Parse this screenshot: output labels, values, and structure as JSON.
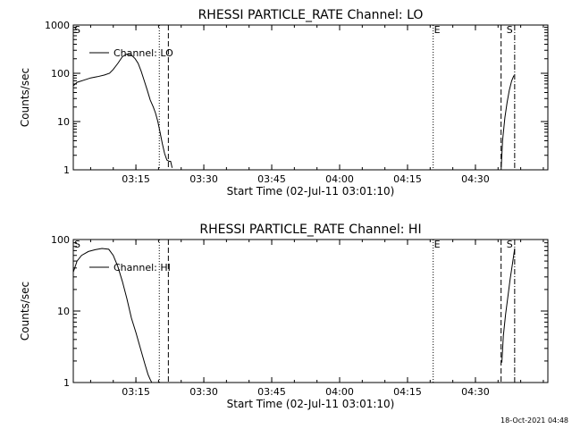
{
  "footer": {
    "timestamp": "18-Oct-2021 04:48"
  },
  "chart_data": [
    {
      "type": "line",
      "title": "RHESSI PARTICLE_RATE Channel: LO",
      "xlabel": "Start Time (02-Jul-11 03:01:10)",
      "ylabel": "Counts/sec",
      "yscale": "log",
      "xlim": [
        "03:01:10",
        "04:46:00"
      ],
      "ylim": [
        1,
        1000
      ],
      "xticks": [
        "03:15",
        "03:30",
        "03:45",
        "04:00",
        "04:15",
        "04:30"
      ],
      "yticks": [
        "1",
        "10",
        "100",
        "1000"
      ],
      "legend": {
        "position": "top-left",
        "label": "Channel: LO"
      },
      "series": [
        {
          "name": "Channel: LO",
          "segments": [
            {
              "x": [
                "03:01:10",
                "03:02:00",
                "03:03:30",
                "03:05:00",
                "03:06:30",
                "03:08:00",
                "03:09:10",
                "03:10:00",
                "03:11:00",
                "03:12:00",
                "03:13:00",
                "03:14:00",
                "03:14:50",
                "03:15:30",
                "03:16:10",
                "03:16:50",
                "03:17:30",
                "03:18:10",
                "03:18:50",
                "03:19:20",
                "03:19:50",
                "03:20:20",
                "03:20:50",
                "03:21:20",
                "03:21:50",
                "03:22:20",
                "03:22:40",
                "03:23:00"
              ],
              "y": [
                55,
                65,
                72,
                80,
                85,
                92,
                100,
                120,
                160,
                220,
                250,
                240,
                200,
                160,
                110,
                70,
                45,
                28,
                20,
                15,
                10,
                6,
                3.5,
                2.2,
                1.6,
                1.5,
                1.5,
                1.1
              ]
            },
            {
              "x": [
                "04:35:40",
                "04:36:00",
                "04:36:30",
                "04:37:00",
                "04:37:30",
                "04:38:00",
                "04:38:30"
              ],
              "y": [
                1.0,
                4.0,
                12,
                25,
                45,
                70,
                90
              ]
            }
          ]
        }
      ],
      "annotations": [
        {
          "label": "S",
          "time": "03:01:10",
          "style": "none"
        },
        {
          "label": "",
          "time": "03:20:10",
          "style": "dotted"
        },
        {
          "label": "",
          "time": "03:22:10",
          "style": "dashed"
        },
        {
          "label": "E",
          "time": "04:20:40",
          "style": "dotted"
        },
        {
          "label": "",
          "time": "04:35:40",
          "style": "dashed"
        },
        {
          "label": "S",
          "time": "04:36:40",
          "style": "none"
        },
        {
          "label": "",
          "time": "04:38:40",
          "style": "dashdot"
        }
      ]
    },
    {
      "type": "line",
      "title": "RHESSI PARTICLE_RATE Channel: HI",
      "xlabel": "Start Time (02-Jul-11 03:01:10)",
      "ylabel": "Counts/sec",
      "yscale": "log",
      "xlim": [
        "03:01:10",
        "04:46:00"
      ],
      "ylim": [
        1,
        100
      ],
      "xticks": [
        "03:15",
        "03:30",
        "03:45",
        "04:00",
        "04:15",
        "04:30"
      ],
      "yticks": [
        "1",
        "10",
        "100"
      ],
      "legend": {
        "position": "top-left",
        "label": "Channel: HI"
      },
      "series": [
        {
          "name": "Channel: HI",
          "segments": [
            {
              "x": [
                "03:01:10",
                "03:02:00",
                "03:03:00",
                "03:04:30",
                "03:06:00",
                "03:07:30",
                "03:09:00",
                "03:10:00",
                "03:11:00",
                "03:12:00",
                "03:13:00",
                "03:14:00",
                "03:15:00",
                "03:16:00",
                "03:17:00",
                "03:17:40",
                "03:18:10",
                "03:18:30"
              ],
              "y": [
                35,
                50,
                60,
                68,
                72,
                75,
                73,
                60,
                42,
                26,
                15,
                8,
                5,
                3,
                1.8,
                1.3,
                1.1,
                1.0
              ]
            },
            {
              "x": [
                "04:35:50",
                "04:36:10",
                "04:36:40",
                "04:37:10",
                "04:37:40",
                "04:38:10",
                "04:38:40"
              ],
              "y": [
                1.9,
                4.5,
                9,
                16,
                28,
                45,
                75
              ]
            }
          ]
        }
      ],
      "annotations": [
        {
          "label": "S",
          "time": "03:01:10",
          "style": "none"
        },
        {
          "label": "",
          "time": "03:20:10",
          "style": "dotted"
        },
        {
          "label": "",
          "time": "03:22:10",
          "style": "dashed"
        },
        {
          "label": "E",
          "time": "04:20:40",
          "style": "dotted"
        },
        {
          "label": "",
          "time": "04:35:40",
          "style": "dashed"
        },
        {
          "label": "S",
          "time": "04:36:40",
          "style": "none"
        },
        {
          "label": "",
          "time": "04:38:40",
          "style": "dashdot"
        }
      ]
    }
  ]
}
